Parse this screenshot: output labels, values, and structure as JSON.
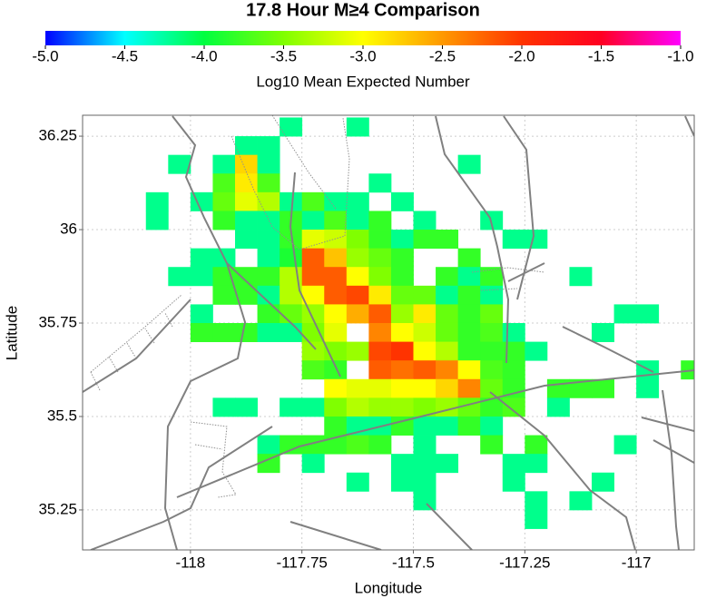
{
  "chart_data": {
    "type": "heatmap",
    "title": "17.8 Hour M≥4 Comparison",
    "x_label": "Longitude",
    "y_label": "Latitude",
    "xlim": [
      -118.242,
      -116.87
    ],
    "ylim": [
      35.143,
      36.306
    ],
    "xticks": [
      -118,
      -117.75,
      -117.5,
      -117.25,
      -117
    ],
    "yticks": [
      36.25,
      36,
      35.75,
      35.5,
      35.25
    ],
    "grid": true,
    "colorbar": {
      "label": "Log10 Mean Expected Number",
      "lim": [
        -5,
        -1
      ],
      "ticks": [
        {
          "value": -5,
          "label": "-5.0"
        },
        {
          "value": -4.5,
          "label": "-4.5"
        },
        {
          "value": -4,
          "label": "-4.0"
        },
        {
          "value": -3.5,
          "label": "-3.5"
        },
        {
          "value": -3,
          "label": "-3.0"
        },
        {
          "value": -2.5,
          "label": "-2.5"
        },
        {
          "value": -2,
          "label": "-2.0"
        },
        {
          "value": -1.5,
          "label": "-1.5"
        },
        {
          "value": -1,
          "label": "-1.0"
        }
      ]
    },
    "colorscale": [
      [
        -5,
        "#0000ff"
      ],
      [
        -4.5,
        "#00ffff"
      ],
      [
        -4,
        "#00ff40"
      ],
      [
        -3.5,
        "#80ff00"
      ],
      [
        -3,
        "#ffff00"
      ],
      [
        -2.5,
        "#ff9900"
      ],
      [
        -2,
        "#ff3300"
      ],
      [
        -1.5,
        "#ff0022"
      ],
      [
        -1,
        "#ff00ff"
      ]
    ],
    "x": [
      -118.075,
      -118.025,
      -117.975,
      -117.925,
      -117.875,
      -117.825,
      -117.775,
      -117.725,
      -117.675,
      -117.625,
      -117.575,
      -117.525,
      -117.475,
      -117.425,
      -117.375,
      -117.325,
      -117.275,
      -117.225,
      -117.175,
      -117.125,
      -117.075,
      -117.025,
      -116.975,
      -116.925,
      -116.875
    ],
    "y": [
      36.275,
      36.225,
      36.175,
      36.125,
      36.075,
      36.025,
      35.975,
      35.925,
      35.875,
      35.825,
      35.775,
      35.725,
      35.675,
      35.625,
      35.575,
      35.525,
      35.475,
      35.425,
      35.375,
      35.325,
      35.275,
      35.225
    ],
    "values": [
      [
        null,
        null,
        null,
        null,
        null,
        null,
        -4.2,
        null,
        null,
        -4.2,
        null,
        null,
        null,
        null,
        null,
        null,
        null,
        null,
        null,
        null,
        null,
        null,
        null,
        null,
        null
      ],
      [
        null,
        null,
        null,
        null,
        -4.2,
        -4.2,
        null,
        null,
        null,
        null,
        null,
        null,
        null,
        null,
        null,
        null,
        null,
        null,
        null,
        null,
        null,
        null,
        null,
        null,
        null
      ],
      [
        null,
        -4.2,
        null,
        -4.2,
        -2.8,
        -4.2,
        null,
        null,
        null,
        null,
        null,
        null,
        null,
        null,
        -4.2,
        null,
        null,
        null,
        null,
        null,
        null,
        null,
        null,
        null,
        null
      ],
      [
        null,
        null,
        null,
        -3.7,
        -2.9,
        -3.7,
        null,
        null,
        null,
        null,
        -4.2,
        null,
        null,
        null,
        null,
        null,
        null,
        null,
        null,
        null,
        null,
        null,
        null,
        null,
        null
      ],
      [
        -4.2,
        null,
        -4.2,
        -3.6,
        -3.1,
        -3.3,
        -4.2,
        -3.7,
        -4.2,
        -4.2,
        null,
        -4.2,
        null,
        null,
        null,
        null,
        null,
        null,
        null,
        null,
        null,
        null,
        null,
        null,
        null
      ],
      [
        -4.2,
        null,
        null,
        -3.8,
        -4.2,
        -4.2,
        -3.8,
        -4.2,
        -3.7,
        -4.2,
        -3.8,
        null,
        -4.2,
        null,
        null,
        -4.2,
        null,
        null,
        null,
        null,
        null,
        null,
        null,
        null,
        null
      ],
      [
        null,
        null,
        null,
        null,
        -4.2,
        -4.2,
        -3.8,
        -3.1,
        -3.2,
        -3.5,
        -3.8,
        -4.2,
        -3.8,
        -3.8,
        null,
        null,
        -4.2,
        -4.2,
        null,
        null,
        null,
        null,
        null,
        null,
        null
      ],
      [
        null,
        null,
        -4.2,
        -4.2,
        null,
        -4.2,
        -3.9,
        -2.2,
        -2.7,
        -3.4,
        -3.6,
        -3.8,
        null,
        null,
        -3.8,
        null,
        null,
        null,
        null,
        null,
        null,
        null,
        null,
        null,
        null
      ],
      [
        null,
        -4.2,
        -4.2,
        -3.8,
        -3.8,
        -3.8,
        -3.3,
        -2.2,
        -2.2,
        -3.0,
        -3.5,
        -3.8,
        null,
        -3.8,
        -4.2,
        -3.8,
        null,
        null,
        null,
        -4.2,
        null,
        null,
        null,
        null,
        null
      ],
      [
        null,
        null,
        null,
        -3.8,
        -3.8,
        -4.2,
        -3.3,
        -3.0,
        -2.2,
        -2.1,
        -2.9,
        -3.6,
        -3.6,
        -4.2,
        -3.8,
        -4.2,
        null,
        null,
        null,
        null,
        null,
        null,
        null,
        null,
        null
      ],
      [
        null,
        null,
        -4.2,
        null,
        null,
        -3.8,
        -3.6,
        -3.4,
        -3.0,
        -2.6,
        -2.2,
        -3.4,
        -2.9,
        -3.6,
        -3.8,
        -3.6,
        null,
        null,
        null,
        null,
        null,
        -4.2,
        -4.2,
        null,
        null
      ],
      [
        null,
        null,
        -3.8,
        -3.8,
        -3.8,
        -4.2,
        -4.2,
        -3.5,
        -3.1,
        null,
        -2.4,
        -3.0,
        -3.2,
        -3.6,
        -3.8,
        -3.7,
        -4.2,
        null,
        null,
        null,
        -4.2,
        null,
        null,
        null,
        null
      ],
      [
        null,
        null,
        null,
        null,
        null,
        null,
        null,
        -3.4,
        -3.5,
        -3.4,
        -2.1,
        -2.0,
        -3.0,
        -3.3,
        -3.8,
        -3.8,
        -3.8,
        -4.2,
        null,
        null,
        null,
        null,
        null,
        null,
        null
      ],
      [
        null,
        null,
        null,
        null,
        null,
        null,
        null,
        -3.7,
        -3.8,
        null,
        -2.2,
        -2.3,
        -2.2,
        -2.4,
        -3.0,
        -3.7,
        -3.8,
        null,
        null,
        null,
        null,
        null,
        -4.2,
        null,
        -3.8
      ],
      [
        null,
        null,
        null,
        null,
        null,
        null,
        null,
        null,
        -3.0,
        -3.1,
        -3.1,
        -3.0,
        -3.0,
        -2.8,
        -2.4,
        -3.6,
        -3.8,
        null,
        -3.8,
        -3.8,
        -3.8,
        null,
        -4.2,
        null,
        null
      ],
      [
        null,
        null,
        null,
        -4.2,
        -4.2,
        null,
        -4.2,
        -4.2,
        -3.5,
        -3.3,
        -3.4,
        -3.4,
        -3.5,
        -3.4,
        -3.6,
        -3.8,
        -3.7,
        null,
        -4.2,
        null,
        null,
        null,
        null,
        null,
        null
      ],
      [
        null,
        null,
        null,
        null,
        null,
        null,
        null,
        null,
        -3.8,
        -4.2,
        -4.2,
        -3.8,
        -4.2,
        -4.2,
        -3.8,
        -4.2,
        null,
        null,
        null,
        null,
        null,
        null,
        null,
        null,
        null
      ],
      [
        null,
        null,
        null,
        null,
        null,
        -4.2,
        -3.8,
        -3.8,
        -3.8,
        -3.7,
        -3.8,
        null,
        -4.2,
        null,
        null,
        -3.8,
        null,
        -3.8,
        null,
        null,
        null,
        -4.2,
        null,
        null,
        null
      ],
      [
        null,
        null,
        null,
        null,
        null,
        -3.8,
        null,
        -4.2,
        null,
        null,
        null,
        -4.2,
        -4.2,
        -4.2,
        null,
        null,
        -4.2,
        -4.2,
        null,
        null,
        null,
        null,
        null,
        null,
        null
      ],
      [
        null,
        null,
        null,
        null,
        null,
        null,
        null,
        null,
        null,
        -4.2,
        null,
        -4.2,
        -4.2,
        null,
        null,
        null,
        -4.2,
        null,
        null,
        null,
        -4.2,
        null,
        null,
        null,
        null
      ],
      [
        null,
        null,
        null,
        null,
        null,
        null,
        null,
        null,
        null,
        null,
        null,
        null,
        -4.2,
        null,
        null,
        null,
        null,
        -4.2,
        null,
        -4.2,
        null,
        null,
        null,
        null,
        null
      ],
      [
        null,
        null,
        null,
        null,
        null,
        null,
        null,
        null,
        null,
        null,
        null,
        null,
        null,
        null,
        null,
        null,
        null,
        -4.2,
        null,
        null,
        null,
        null,
        null,
        null,
        null
      ]
    ]
  }
}
